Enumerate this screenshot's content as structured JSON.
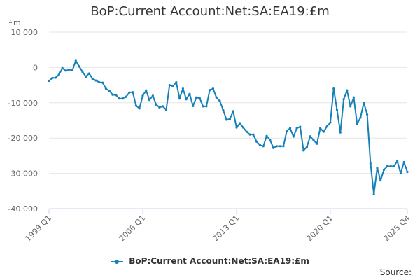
{
  "chart_data": {
    "type": "line",
    "title": "BoP:Current Account:Net:SA:EA19:£m",
    "ylabel": "£m",
    "ylim": [
      -40000,
      10000
    ],
    "yticks": [
      10000,
      0,
      -10000,
      -20000,
      -30000,
      -40000
    ],
    "ytick_labels": [
      "10 000",
      "0",
      "-10 000",
      "-20 000",
      "-30 000",
      "-40 000"
    ],
    "xticks": [
      "1999 Q1",
      "2006 Q1",
      "2013 Q1",
      "2020 Q1",
      "2025 Q4"
    ],
    "xlim": [
      "1999 Q1",
      "2025 Q4"
    ],
    "grid": true,
    "legend": "bottom",
    "x": [
      "1999 Q1",
      "1999 Q2",
      "1999 Q3",
      "1999 Q4",
      "2000 Q1",
      "2000 Q2",
      "2000 Q3",
      "2000 Q4",
      "2001 Q1",
      "2001 Q2",
      "2001 Q3",
      "2001 Q4",
      "2002 Q1",
      "2002 Q2",
      "2002 Q3",
      "2002 Q4",
      "2003 Q1",
      "2003 Q2",
      "2003 Q3",
      "2003 Q4",
      "2004 Q1",
      "2004 Q2",
      "2004 Q3",
      "2004 Q4",
      "2005 Q1",
      "2005 Q2",
      "2005 Q3",
      "2005 Q4",
      "2006 Q1",
      "2006 Q2",
      "2006 Q3",
      "2006 Q4",
      "2007 Q1",
      "2007 Q2",
      "2007 Q3",
      "2007 Q4",
      "2008 Q1",
      "2008 Q2",
      "2008 Q3",
      "2008 Q4",
      "2009 Q1",
      "2009 Q2",
      "2009 Q3",
      "2009 Q4",
      "2010 Q1",
      "2010 Q2",
      "2010 Q3",
      "2010 Q4",
      "2011 Q1",
      "2011 Q2",
      "2011 Q3",
      "2011 Q4",
      "2012 Q1",
      "2012 Q2",
      "2012 Q3",
      "2012 Q4",
      "2013 Q1",
      "2013 Q2",
      "2013 Q3",
      "2013 Q4",
      "2014 Q1",
      "2014 Q2",
      "2014 Q3",
      "2014 Q4",
      "2015 Q1",
      "2015 Q2",
      "2015 Q3",
      "2015 Q4",
      "2016 Q1",
      "2016 Q2",
      "2016 Q3",
      "2016 Q4",
      "2017 Q1",
      "2017 Q2",
      "2017 Q3",
      "2017 Q4",
      "2018 Q1",
      "2018 Q2",
      "2018 Q3",
      "2018 Q4",
      "2019 Q1",
      "2019 Q2",
      "2019 Q3",
      "2019 Q4",
      "2020 Q1",
      "2020 Q2",
      "2020 Q3",
      "2020 Q4",
      "2021 Q1",
      "2021 Q2",
      "2021 Q3",
      "2021 Q4",
      "2022 Q1",
      "2022 Q2",
      "2022 Q3",
      "2022 Q4",
      "2023 Q1",
      "2023 Q2",
      "2023 Q3",
      "2023 Q4",
      "2024 Q1",
      "2024 Q2",
      "2024 Q3",
      "2024 Q4",
      "2025 Q1",
      "2025 Q2",
      "2025 Q3",
      "2025 Q4"
    ],
    "series": [
      {
        "name": "BoP:Current Account:Net:SA:EA19:£m",
        "color": "#1681b8",
        "values": [
          -3800,
          -3000,
          -2900,
          -2000,
          -200,
          -900,
          -600,
          -800,
          1900,
          300,
          -1200,
          -2600,
          -1700,
          -3200,
          -3700,
          -4200,
          -4300,
          -6000,
          -6600,
          -7700,
          -7800,
          -8800,
          -8800,
          -8300,
          -7100,
          -7000,
          -10800,
          -11600,
          -8000,
          -6500,
          -9200,
          -8000,
          -10500,
          -11300,
          -11000,
          -12000,
          -5000,
          -5300,
          -4200,
          -8800,
          -6000,
          -9000,
          -7500,
          -10900,
          -8500,
          -8700,
          -11000,
          -11000,
          -6400,
          -6000,
          -8500,
          -9500,
          -12000,
          -14800,
          -14600,
          -12400,
          -17000,
          -15800,
          -17000,
          -18200,
          -19000,
          -19000,
          -21000,
          -22000,
          -22300,
          -19400,
          -20500,
          -22800,
          -22300,
          -22300,
          -22300,
          -18000,
          -17200,
          -19600,
          -17200,
          -16800,
          -23500,
          -22500,
          -19500,
          -20600,
          -21600,
          -17200,
          -18200,
          -16700,
          -15600,
          -6000,
          -12000,
          -18400,
          -9000,
          -6500,
          -11000,
          -8500,
          -16000,
          -14200,
          -10000,
          -13300,
          -27200,
          -35900,
          -28500,
          -32000,
          -29000,
          -28000,
          -28000,
          -28000,
          -26500,
          -30000,
          -26800,
          -29600
        ]
      }
    ],
    "legend_entries": [
      "BoP:Current Account:Net:SA:EA19:£m"
    ],
    "source_label": "Source:"
  }
}
